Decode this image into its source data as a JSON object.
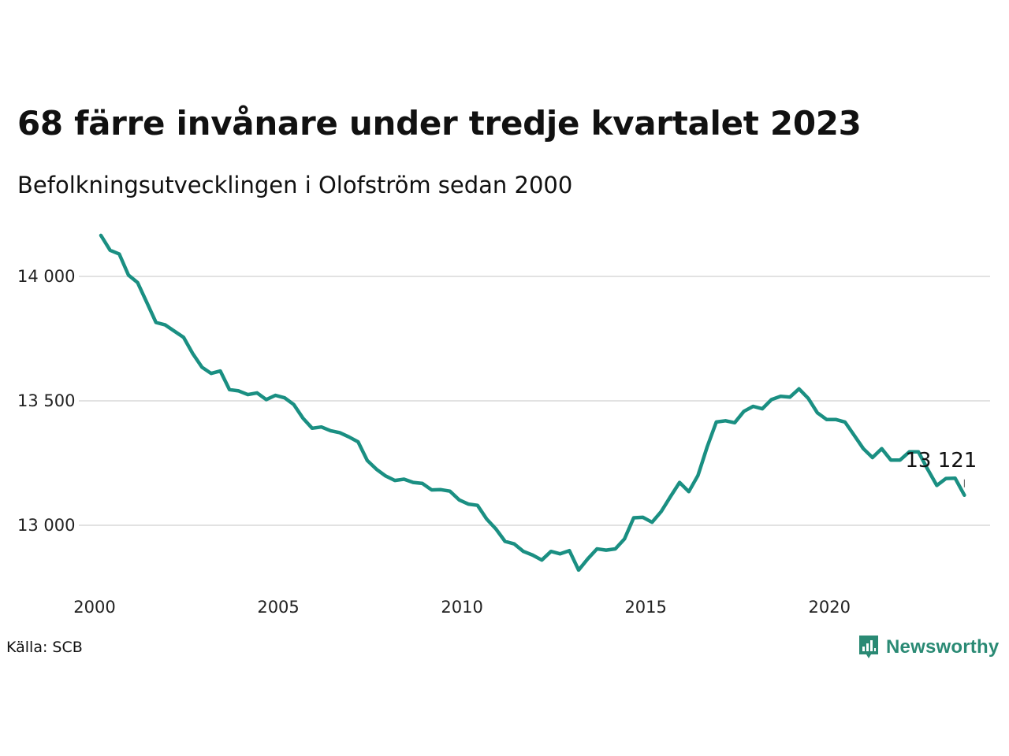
{
  "title": "68 färre invånare under tredje kvartalet 2023",
  "subtitle": "Befolkningsutvecklingen i Olofström sedan 2000",
  "source": "Källa: SCB",
  "brand": {
    "name": "Newsworthy",
    "icon": "bar-chart-icon",
    "color": "#2a8a74"
  },
  "colors": {
    "line": "#1a8f82",
    "grid": "#e2e2e2"
  },
  "chart_data": {
    "type": "line",
    "title": "68 färre invånare under tredje kvartalet 2023",
    "subtitle": "Befolkningsutvecklingen i Olofström sedan 2000",
    "x_ticks": [
      "2000",
      "2005",
      "2010",
      "2015",
      "2020"
    ],
    "y_ticks": [
      {
        "value": 13000,
        "label": "13 000"
      },
      {
        "value": 13500,
        "label": "13 500"
      },
      {
        "value": 14000,
        "label": "14 000"
      }
    ],
    "xlim": [
      2000.0,
      2024.2
    ],
    "ylim": [
      12780,
      14180
    ],
    "grid": "horizontal",
    "end_label": "13 121",
    "series": [
      {
        "x": [
          2000.0,
          2000.25,
          2000.5,
          2000.75,
          2001.0,
          2001.25,
          2001.5,
          2001.75,
          2002.0,
          2002.25,
          2002.5,
          2002.75,
          2003.0,
          2003.25,
          2003.5,
          2003.75,
          2004.0,
          2004.25,
          2004.5,
          2004.75,
          2005.0,
          2005.25,
          2005.5,
          2005.75,
          2006.0,
          2006.25,
          2006.5,
          2006.75,
          2007.0,
          2007.25,
          2007.5,
          2007.75,
          2008.0,
          2008.25,
          2008.5,
          2008.75,
          2009.0,
          2009.25,
          2009.5,
          2009.75,
          2010.0,
          2010.25,
          2010.5,
          2010.75,
          2011.0,
          2011.25,
          2011.5,
          2011.75,
          2012.0,
          2012.25,
          2012.5,
          2012.75,
          2013.0,
          2013.25,
          2013.5,
          2013.75,
          2014.0,
          2014.25,
          2014.5,
          2014.75,
          2015.0,
          2015.25,
          2015.5,
          2015.75,
          2016.0,
          2016.25,
          2016.5,
          2016.75,
          2017.0,
          2017.25,
          2017.5,
          2017.75,
          2018.0,
          2018.25,
          2018.5,
          2018.75,
          2019.0,
          2019.25,
          2019.5,
          2019.75,
          2020.0,
          2020.25,
          2020.5,
          2020.75,
          2021.0,
          2021.25,
          2021.5,
          2021.75,
          2022.0,
          2022.25,
          2022.5,
          2022.75,
          2023.0,
          2023.25,
          2023.5
        ],
        "values": [
          14165,
          14105,
          14090,
          14005,
          13975,
          13895,
          13815,
          13805,
          13780,
          13755,
          13690,
          13635,
          13610,
          13620,
          13545,
          13540,
          13525,
          13532,
          13505,
          13522,
          13512,
          13485,
          13430,
          13390,
          13395,
          13380,
          13372,
          13355,
          13335,
          13260,
          13225,
          13198,
          13180,
          13185,
          13172,
          13168,
          13142,
          13143,
          13137,
          13102,
          13085,
          13080,
          13025,
          12985,
          12935,
          12925,
          12895,
          12880,
          12860,
          12895,
          12885,
          12898,
          12820,
          12865,
          12905,
          12900,
          12905,
          12945,
          13030,
          13032,
          13012,
          13055,
          13115,
          13172,
          13135,
          13200,
          13315,
          13415,
          13420,
          13412,
          13458,
          13478,
          13468,
          13505,
          13518,
          13515,
          13548,
          13510,
          13452,
          13425,
          13425,
          13415,
          13362,
          13308,
          13272,
          13308,
          13262,
          13262,
          13295,
          13295,
          13225,
          13160,
          13188,
          13189,
          13121
        ]
      }
    ]
  }
}
